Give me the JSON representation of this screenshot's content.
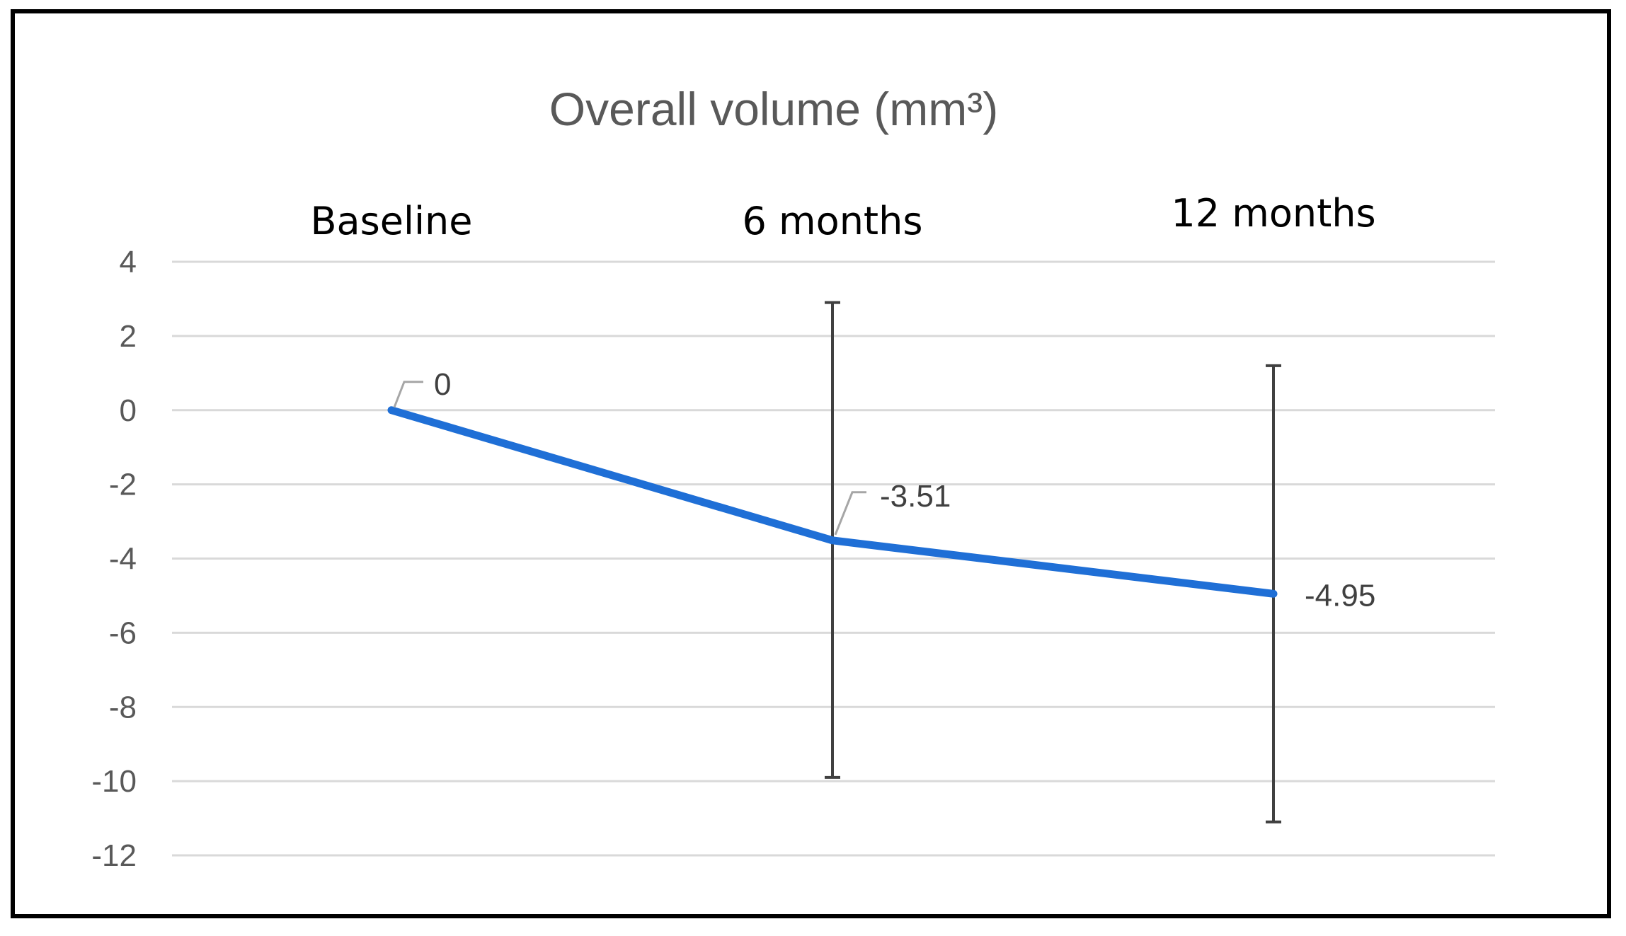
{
  "chart_data": {
    "type": "line",
    "title": "Overall volume (mm³)",
    "xlabel": "",
    "ylabel": "",
    "categories": [
      "Baseline",
      "6 months",
      "12 months"
    ],
    "values": [
      0,
      -3.51,
      -4.95
    ],
    "data_labels": [
      "0",
      "-3.51",
      "-4.95"
    ],
    "error_bars": [
      null,
      {
        "low": -9.9,
        "high": 2.9
      },
      {
        "low": -11.1,
        "high": 1.2
      }
    ],
    "ylim": [
      -12,
      4
    ],
    "yticks": [
      4,
      2,
      0,
      -2,
      -4,
      -6,
      -8,
      -10,
      -12
    ],
    "ytick_labels": [
      "4",
      "2",
      "0",
      "-2",
      "-4",
      "-6",
      "-8",
      "-10",
      "-12"
    ],
    "grid": true,
    "legend": "none",
    "colors": {
      "line": "#1F6FD6",
      "grid": "#D9D9D9",
      "error_bar": "#404040",
      "leader": "#A6A6A6"
    }
  }
}
